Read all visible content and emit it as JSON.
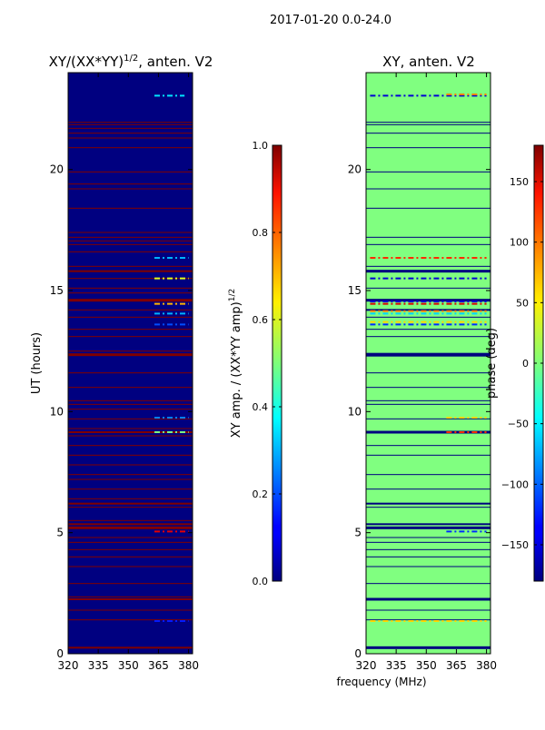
{
  "figure": {
    "suptitle": "2017-01-20 0.0-24.0"
  },
  "chart_data": [
    {
      "type": "heatmap",
      "title": "XY/(XX*YY)",
      "title_exponent": "1/2",
      "title_suffix": ", anten. V2",
      "ylabel": "UT (hours)",
      "xlabel": "",
      "xlim": [
        320,
        382
      ],
      "ylim": [
        0,
        24
      ],
      "xticks": [
        "320",
        "335",
        "350",
        "365",
        "380"
      ],
      "xtick_values": [
        320,
        335,
        350,
        365,
        380
      ],
      "yticks": [
        "0",
        "5",
        "10",
        "15",
        "20"
      ],
      "ytick_values": [
        0,
        5,
        10,
        15,
        20
      ],
      "background_value": 0.0,
      "flagged_rows": [
        {
          "y": 0.25,
          "value": 1.0,
          "thick": 2
        },
        {
          "y": 1.4,
          "value": 1.0,
          "thick": 1
        },
        {
          "y": 1.8,
          "value": 1.0,
          "thick": 1
        },
        {
          "y": 2.25,
          "value": 1.0,
          "thick": 2
        },
        {
          "y": 2.35,
          "value": 1.0,
          "thick": 1
        },
        {
          "y": 2.9,
          "value": 1.0,
          "thick": 1
        },
        {
          "y": 3.6,
          "value": 1.0,
          "thick": 1
        },
        {
          "y": 4.0,
          "value": 1.0,
          "thick": 1
        },
        {
          "y": 4.3,
          "value": 1.0,
          "thick": 1
        },
        {
          "y": 4.6,
          "value": 1.0,
          "thick": 1
        },
        {
          "y": 4.8,
          "value": 1.0,
          "thick": 1
        },
        {
          "y": 5.2,
          "value": 1.0,
          "thick": 3
        },
        {
          "y": 5.35,
          "value": 1.0,
          "thick": 2
        },
        {
          "y": 5.5,
          "value": 1.0,
          "thick": 1
        },
        {
          "y": 6.05,
          "value": 1.0,
          "thick": 1
        },
        {
          "y": 6.2,
          "value": 1.0,
          "thick": 2
        },
        {
          "y": 6.4,
          "value": 1.0,
          "thick": 1
        },
        {
          "y": 6.8,
          "value": 1.0,
          "thick": 1
        },
        {
          "y": 7.2,
          "value": 1.0,
          "thick": 1
        },
        {
          "y": 7.4,
          "value": 1.0,
          "thick": 1
        },
        {
          "y": 7.8,
          "value": 1.0,
          "thick": 1
        },
        {
          "y": 8.2,
          "value": 1.0,
          "thick": 1
        },
        {
          "y": 8.6,
          "value": 1.0,
          "thick": 1
        },
        {
          "y": 9.0,
          "value": 1.0,
          "thick": 1
        },
        {
          "y": 9.15,
          "value": 1.0,
          "thick": 2
        },
        {
          "y": 9.3,
          "value": 1.0,
          "thick": 1
        },
        {
          "y": 9.7,
          "value": 1.0,
          "thick": 1
        },
        {
          "y": 10.1,
          "value": 1.0,
          "thick": 1
        },
        {
          "y": 10.3,
          "value": 1.0,
          "thick": 1
        },
        {
          "y": 10.45,
          "value": 1.0,
          "thick": 1
        },
        {
          "y": 11.0,
          "value": 1.0,
          "thick": 1
        },
        {
          "y": 11.6,
          "value": 1.0,
          "thick": 1
        },
        {
          "y": 12.35,
          "value": 1.0,
          "thick": 3
        },
        {
          "y": 12.5,
          "value": 1.0,
          "thick": 1
        },
        {
          "y": 13.1,
          "value": 1.0,
          "thick": 1
        },
        {
          "y": 13.4,
          "value": 1.0,
          "thick": 1
        },
        {
          "y": 13.9,
          "value": 1.0,
          "thick": 1
        },
        {
          "y": 14.2,
          "value": 1.0,
          "thick": 1
        },
        {
          "y": 14.6,
          "value": 1.0,
          "thick": 3
        },
        {
          "y": 14.9,
          "value": 1.0,
          "thick": 1
        },
        {
          "y": 15.1,
          "value": 1.0,
          "thick": 1
        },
        {
          "y": 15.5,
          "value": 1.0,
          "thick": 1
        },
        {
          "y": 15.8,
          "value": 1.0,
          "thick": 2
        },
        {
          "y": 16.0,
          "value": 1.0,
          "thick": 1
        },
        {
          "y": 16.6,
          "value": 1.0,
          "thick": 1
        },
        {
          "y": 16.9,
          "value": 1.0,
          "thick": 1
        },
        {
          "y": 17.05,
          "value": 1.0,
          "thick": 1
        },
        {
          "y": 17.2,
          "value": 1.0,
          "thick": 1
        },
        {
          "y": 17.4,
          "value": 1.0,
          "thick": 1
        },
        {
          "y": 18.4,
          "value": 1.0,
          "thick": 1
        },
        {
          "y": 19.2,
          "value": 1.0,
          "thick": 1
        },
        {
          "y": 19.4,
          "value": 1.0,
          "thick": 1
        },
        {
          "y": 19.9,
          "value": 1.0,
          "thick": 1
        },
        {
          "y": 20.9,
          "value": 1.0,
          "thick": 1
        },
        {
          "y": 21.3,
          "value": 1.0,
          "thick": 1
        },
        {
          "y": 21.5,
          "value": 1.0,
          "thick": 1
        },
        {
          "y": 21.7,
          "value": 1.0,
          "thick": 1
        },
        {
          "y": 21.85,
          "value": 1.0,
          "thick": 1
        },
        {
          "y": 21.95,
          "value": 1.0,
          "thick": 1
        }
      ],
      "dashed_rows": [
        {
          "y": 1.35,
          "x0": 363,
          "x1": 380,
          "value": 0.15
        },
        {
          "y": 5.05,
          "x0": 363,
          "x1": 380,
          "value": 0.9
        },
        {
          "y": 9.15,
          "x0": 363,
          "x1": 380,
          "value": 0.5
        },
        {
          "y": 9.75,
          "x0": 363,
          "x1": 380,
          "value": 0.25
        },
        {
          "y": 13.6,
          "x0": 363,
          "x1": 380,
          "value": 0.2
        },
        {
          "y": 14.05,
          "x0": 363,
          "x1": 380,
          "value": 0.3
        },
        {
          "y": 14.45,
          "x0": 363,
          "x1": 380,
          "value": 0.7
        },
        {
          "y": 15.5,
          "x0": 363,
          "x1": 380,
          "value": 0.6
        },
        {
          "y": 16.35,
          "x0": 363,
          "x1": 380,
          "value": 0.3
        },
        {
          "y": 23.05,
          "x0": 363,
          "x1": 378,
          "value": 0.35
        }
      ]
    },
    {
      "type": "heatmap",
      "title": "XY, anten. V2",
      "ylabel": "",
      "xlabel": "frequency (MHz)",
      "xlim": [
        320,
        382
      ],
      "ylim": [
        0,
        24
      ],
      "xticks": [
        "320",
        "335",
        "350",
        "365",
        "380"
      ],
      "xtick_values": [
        320,
        335,
        350,
        365,
        380
      ],
      "yticks": [
        "0",
        "5",
        "10",
        "15",
        "20"
      ],
      "ytick_values": [
        0,
        5,
        10,
        15,
        20
      ],
      "background_value": 0,
      "flagged_rows": [
        {
          "y": 0.25,
          "value": -180,
          "thick": 3
        },
        {
          "y": 1.4,
          "value": -180,
          "thick": 1
        },
        {
          "y": 1.8,
          "value": -180,
          "thick": 1
        },
        {
          "y": 2.25,
          "value": -180,
          "thick": 3
        },
        {
          "y": 2.9,
          "value": -180,
          "thick": 1
        },
        {
          "y": 3.6,
          "value": -180,
          "thick": 1
        },
        {
          "y": 4.0,
          "value": -180,
          "thick": 1
        },
        {
          "y": 4.3,
          "value": -180,
          "thick": 1
        },
        {
          "y": 4.6,
          "value": -180,
          "thick": 1
        },
        {
          "y": 4.8,
          "value": -180,
          "thick": 1
        },
        {
          "y": 5.2,
          "value": -180,
          "thick": 3
        },
        {
          "y": 5.35,
          "value": -180,
          "thick": 2
        },
        {
          "y": 6.05,
          "value": -180,
          "thick": 1
        },
        {
          "y": 6.2,
          "value": -180,
          "thick": 2
        },
        {
          "y": 6.8,
          "value": -180,
          "thick": 1
        },
        {
          "y": 7.4,
          "value": -180,
          "thick": 1
        },
        {
          "y": 8.2,
          "value": -180,
          "thick": 1
        },
        {
          "y": 8.6,
          "value": -180,
          "thick": 1
        },
        {
          "y": 9.15,
          "value": -180,
          "thick": 3
        },
        {
          "y": 9.7,
          "value": -180,
          "thick": 1
        },
        {
          "y": 10.3,
          "value": -180,
          "thick": 1
        },
        {
          "y": 10.45,
          "value": -180,
          "thick": 1
        },
        {
          "y": 11.0,
          "value": -180,
          "thick": 1
        },
        {
          "y": 11.6,
          "value": -180,
          "thick": 1
        },
        {
          "y": 12.35,
          "value": -180,
          "thick": 4
        },
        {
          "y": 13.1,
          "value": -180,
          "thick": 1
        },
        {
          "y": 13.4,
          "value": -180,
          "thick": 1
        },
        {
          "y": 13.9,
          "value": -180,
          "thick": 1
        },
        {
          "y": 14.2,
          "value": -180,
          "thick": 2
        },
        {
          "y": 14.6,
          "value": -180,
          "thick": 3
        },
        {
          "y": 15.1,
          "value": -180,
          "thick": 1
        },
        {
          "y": 15.8,
          "value": -180,
          "thick": 3
        },
        {
          "y": 16.0,
          "value": -180,
          "thick": 1
        },
        {
          "y": 16.9,
          "value": -180,
          "thick": 1
        },
        {
          "y": 17.2,
          "value": -180,
          "thick": 1
        },
        {
          "y": 18.4,
          "value": -180,
          "thick": 1
        },
        {
          "y": 19.2,
          "value": -180,
          "thick": 1
        },
        {
          "y": 19.9,
          "value": -180,
          "thick": 1
        },
        {
          "y": 20.9,
          "value": -180,
          "thick": 1
        },
        {
          "y": 21.5,
          "value": -180,
          "thick": 1
        },
        {
          "y": 21.85,
          "value": -180,
          "thick": 1
        },
        {
          "y": 21.95,
          "value": -180,
          "thick": 1
        }
      ],
      "dashed_rows": [
        {
          "y": 1.35,
          "x0": 322,
          "x1": 380,
          "value": 60
        },
        {
          "y": 5.05,
          "x0": 360,
          "x1": 380,
          "value": -120
        },
        {
          "y": 9.15,
          "x0": 360,
          "x1": 380,
          "value": 120
        },
        {
          "y": 9.75,
          "x0": 360,
          "x1": 380,
          "value": 60
        },
        {
          "y": 13.6,
          "x0": 322,
          "x1": 380,
          "value": -120
        },
        {
          "y": 13.7,
          "x0": 322,
          "x1": 380,
          "value": 60
        },
        {
          "y": 14.05,
          "x0": 322,
          "x1": 380,
          "value": -60
        },
        {
          "y": 14.15,
          "x0": 322,
          "x1": 380,
          "value": 90
        },
        {
          "y": 14.45,
          "x0": 322,
          "x1": 380,
          "value": 150
        },
        {
          "y": 14.55,
          "x0": 322,
          "x1": 380,
          "value": -150
        },
        {
          "y": 15.5,
          "x0": 322,
          "x1": 380,
          "value": -150
        },
        {
          "y": 16.35,
          "x0": 322,
          "x1": 380,
          "value": 120
        },
        {
          "y": 23.05,
          "x0": 322,
          "x1": 380,
          "value": -150
        },
        {
          "y": 23.1,
          "x0": 360,
          "x1": 380,
          "value": 90
        }
      ]
    }
  ],
  "colorbars": [
    {
      "label": "XY amp. / (XX*YY amp)",
      "label_exponent": "1/2",
      "range": [
        0.0,
        1.0
      ],
      "tick_values": [
        0.0,
        0.2,
        0.4,
        0.6,
        0.8,
        1.0
      ],
      "tick_labels": [
        "0.0",
        "0.2",
        "0.4",
        "0.6",
        "0.8",
        "1.0"
      ]
    },
    {
      "label": "phase (deg)",
      "range": [
        -180,
        180
      ],
      "tick_values": [
        -150,
        -100,
        -50,
        0,
        50,
        100,
        150
      ],
      "tick_labels": [
        "−150",
        "−100",
        "−50",
        "0",
        "50",
        "100",
        "150"
      ]
    }
  ]
}
